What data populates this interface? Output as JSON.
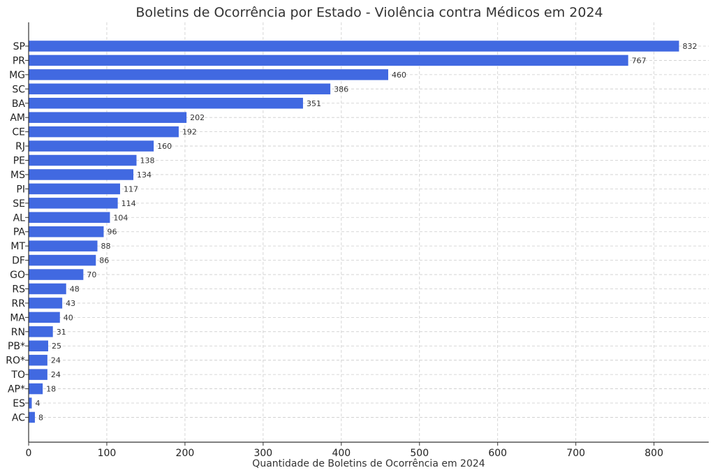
{
  "chart_data": {
    "type": "bar",
    "orientation": "horizontal",
    "title": "Boletins de Ocorrência por Estado - Violência contra Médicos em 2024",
    "xlabel": "Quantidade de Boletins de Ocorrência em 2024",
    "ylabel": "",
    "xlim": [
      0,
      870
    ],
    "xticks": [
      0,
      100,
      200,
      300,
      400,
      500,
      600,
      700,
      800
    ],
    "grid": true,
    "bar_color": "#4169e1",
    "categories": [
      "SP",
      "PR",
      "MG",
      "SC",
      "BA",
      "AM",
      "CE",
      "RJ",
      "PE",
      "MS",
      "PI",
      "SE",
      "AL",
      "PA",
      "MT",
      "DF",
      "GO",
      "RS",
      "RR",
      "MA",
      "RN",
      "PB*",
      "RO*",
      "TO",
      "AP*",
      "ES",
      "AC"
    ],
    "values": [
      832,
      767,
      460,
      386,
      351,
      202,
      192,
      160,
      138,
      134,
      117,
      114,
      104,
      96,
      88,
      86,
      70,
      48,
      43,
      40,
      31,
      25,
      24,
      24,
      18,
      4,
      8
    ]
  }
}
